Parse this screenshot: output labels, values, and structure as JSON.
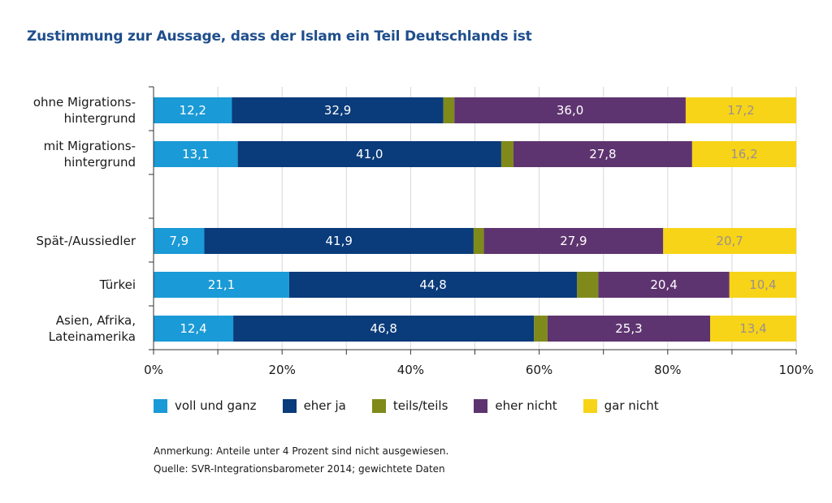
{
  "chart_data": {
    "type": "bar",
    "orientation": "horizontal",
    "stacked": true,
    "title": "Zustimmung zur Aussage, dass der Islam ein Teil Deutschlands ist",
    "categories": [
      [
        "ohne Migrations-",
        "hintergrund"
      ],
      [
        "mit Migrations-",
        "hintergrund"
      ],
      [
        "Spät-/Aussiedler"
      ],
      [
        "Türkei"
      ],
      [
        "Asien, Afrika,",
        "Lateinamerika"
      ]
    ],
    "series": [
      {
        "name": "voll und ganz",
        "color": "#1a9ad6",
        "text_color": "#ffffff",
        "values": [
          12.2,
          13.1,
          7.9,
          21.1,
          12.4
        ],
        "labels": [
          "12,2",
          "13,1",
          "7,9",
          "21,1",
          "12,4"
        ]
      },
      {
        "name": "eher ja",
        "color": "#0a3b7a",
        "text_color": "#ffffff",
        "values": [
          32.9,
          41.0,
          41.9,
          44.8,
          46.8
        ],
        "labels": [
          "32,9",
          "41,0",
          "41,9",
          "44,8",
          "46,8"
        ]
      },
      {
        "name": "teils/teils",
        "color": "#7f8a1a",
        "text_color": "#ffffff",
        "values": [
          1.7,
          1.9,
          1.6,
          3.3,
          2.1
        ],
        "labels": [
          "",
          "",
          "",
          "",
          ""
        ]
      },
      {
        "name": "eher nicht",
        "color": "#5e3470",
        "text_color": "#ffffff",
        "values": [
          36.0,
          27.8,
          27.9,
          20.4,
          25.3
        ],
        "labels": [
          "36,0",
          "27,8",
          "27,9",
          "20,4",
          "25,3"
        ]
      },
      {
        "name": "gar nicht",
        "color": "#f7d417",
        "text_color": "#9b8f8f",
        "values": [
          17.2,
          16.2,
          20.7,
          10.4,
          13.4
        ],
        "labels": [
          "17,2",
          "16,2",
          "20,7",
          "10,4",
          "13,4"
        ]
      }
    ],
    "xlim": [
      0,
      100
    ],
    "xticks": [
      "0%",
      "20%",
      "40%",
      "60%",
      "80%",
      "100%"
    ],
    "grid": true
  },
  "notes": [
    "Anmerkung: Anteile unter 4 Prozent sind nicht ausgewiesen.",
    "Quelle: SVR-Integrationsbarometer 2014; gewichtete Daten"
  ]
}
